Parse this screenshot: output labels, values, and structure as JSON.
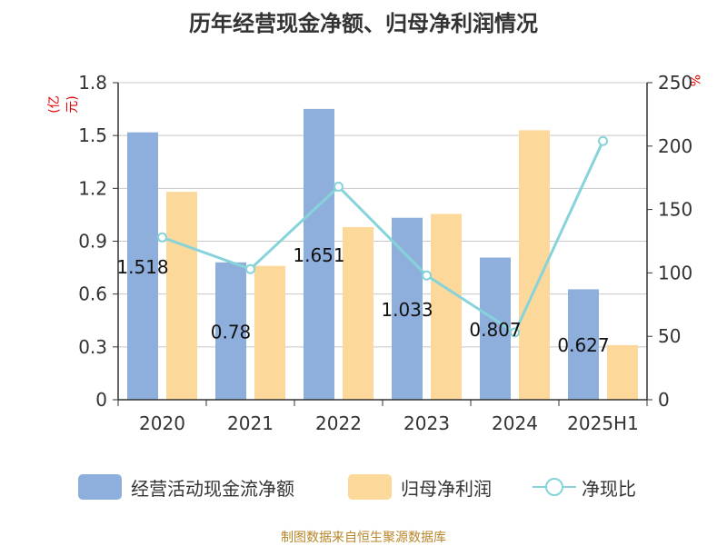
{
  "title": "历年经营现金净额、归母净利润情况",
  "source_note": "制图数据来自恒生聚源数据库",
  "colors": {
    "ocf": "#8eaedb",
    "profit": "#fdd89b",
    "ratio": "#86d3da",
    "grid": "#c8c8c8",
    "axis": "#333333",
    "unit": "#e00000"
  },
  "chart_data": {
    "type": "bar",
    "categories": [
      "2020",
      "2021",
      "2022",
      "2023",
      "2024",
      "2025H1"
    ],
    "series": [
      {
        "name": "经营活动现金流净额",
        "type": "bar",
        "axis": "left",
        "values": [
          1.518,
          0.78,
          1.651,
          1.033,
          0.807,
          0.627
        ],
        "data_labels": [
          "1.518",
          "0.78",
          "1.651",
          "1.033",
          "0.807",
          "0.627"
        ]
      },
      {
        "name": "归母净利润",
        "type": "bar",
        "axis": "left",
        "values": [
          1.18,
          0.76,
          0.98,
          1.055,
          1.53,
          0.31
        ]
      },
      {
        "name": "净现比",
        "type": "line",
        "axis": "right",
        "values": [
          128,
          103,
          168,
          98,
          53,
          204
        ]
      }
    ],
    "y_left": {
      "label": "(亿元)",
      "min": 0,
      "max": 1.8,
      "ticks": [
        "0",
        "0.3",
        "0.6",
        "0.9",
        "1.2",
        "1.5",
        "1.8"
      ]
    },
    "y_right": {
      "label": "%",
      "min": 0,
      "max": 250,
      "ticks": [
        "0",
        "50",
        "100",
        "150",
        "200",
        "250"
      ]
    },
    "grid": true,
    "legend_position": "bottom"
  }
}
